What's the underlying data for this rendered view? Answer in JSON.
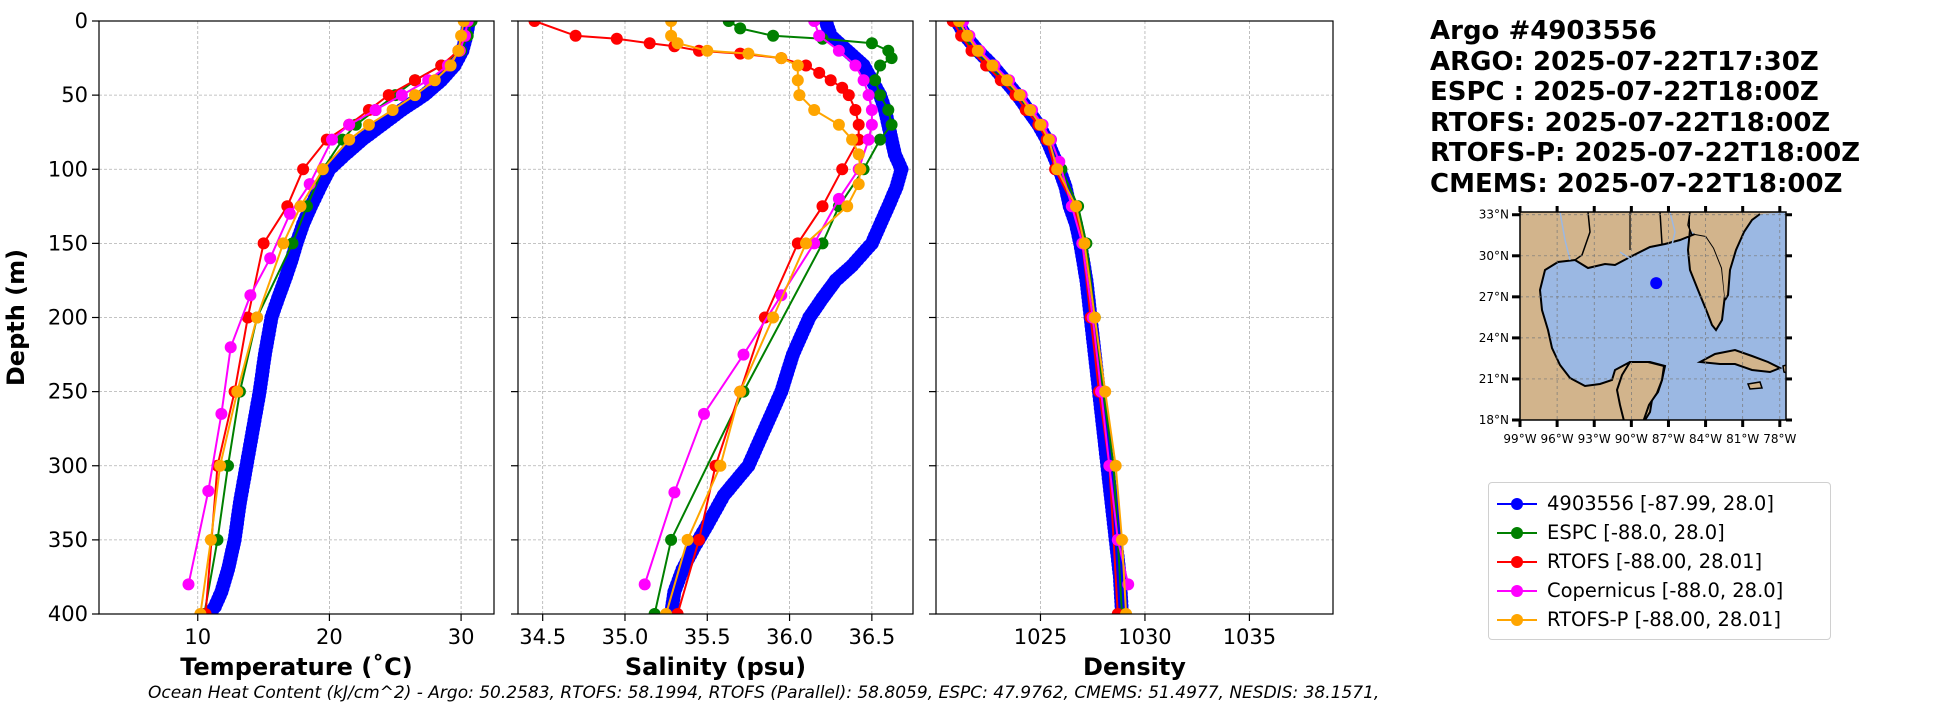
{
  "colors": {
    "argo": "#0000ff",
    "espc": "#008000",
    "rtofs": "#ff0000",
    "copernicus": "#ff00ff",
    "rtofs_p": "#ffa500",
    "land": "#d2b48c",
    "ocean": "#9bb8e3"
  },
  "title": {
    "line1": "Argo #4903556",
    "line2": "ARGO: 2025-07-22T17:30Z",
    "line3": "ESPC : 2025-07-22T18:00Z",
    "line4": "RTOFS: 2025-07-22T18:00Z",
    "line5": "RTOFS-P: 2025-07-22T18:00Z",
    "line6": "CMEMS: 2025-07-22T18:00Z"
  },
  "legend": {
    "items": [
      {
        "label": "4903556 [-87.99, 28.0]",
        "color": "#0000ff"
      },
      {
        "label": "ESPC [-88.0, 28.0]",
        "color": "#008000"
      },
      {
        "label": "RTOFS [-88.00, 28.01]",
        "color": "#ff0000"
      },
      {
        "label": "Copernicus [-88.0, 28.0]",
        "color": "#ff00ff"
      },
      {
        "label": "RTOFS-P [-88.00, 28.01]",
        "color": "#ffa500"
      }
    ]
  },
  "footer": "Ocean Heat Content (kJ/cm^2) - Argo: 50.2583,  RTOFS: 58.1994,  RTOFS (Parallel): 58.8059,  ESPC: 47.9762,  CMEMS: 51.4977,  NESDIS: 38.1571,",
  "map": {
    "lat_ticks": [
      "33°N",
      "30°N",
      "27°N",
      "24°N",
      "21°N",
      "18°N"
    ],
    "lon_ticks": [
      "99°W",
      "96°W",
      "93°W",
      "90°W",
      "87°W",
      "84°W",
      "81°W",
      "78°W"
    ],
    "float_position": {
      "lon": -87.99,
      "lat": 28.0
    },
    "lon_range": [
      -99,
      -77.5
    ],
    "lat_range": [
      18,
      33.2
    ]
  },
  "chart_data": [
    {
      "type": "line",
      "xlabel": "Temperature (˚C)",
      "ylabel": "Depth (m)",
      "xlim": [
        2.5,
        32.5
      ],
      "ylim": [
        400,
        0
      ],
      "xticks": [
        "10",
        "20",
        "30"
      ],
      "yticks": [
        "0",
        "50",
        "100",
        "150",
        "200",
        "250",
        "300",
        "350",
        "400"
      ],
      "grid": true,
      "series": [
        {
          "name": "4903556",
          "key": "argo",
          "dense": true,
          "x": [
            30.6,
            30.4,
            30.1,
            29.5,
            28.5,
            27.2,
            25.5,
            24.0,
            22.5,
            21.2,
            20.0,
            19.3,
            18.6,
            18.0,
            17.5,
            17.1,
            16.6,
            16.1,
            15.6,
            15.1,
            14.7,
            14.2,
            13.7,
            13.2,
            12.8,
            12.3,
            11.8,
            11.3,
            10.9
          ],
          "y": [
            0,
            10,
            20,
            30,
            40,
            50,
            60,
            70,
            80,
            90,
            100,
            112,
            125,
            137,
            150,
            162,
            175,
            187,
            200,
            225,
            250,
            275,
            300,
            325,
            350,
            370,
            385,
            395,
            400
          ]
        },
        {
          "name": "ESPC",
          "key": "espc",
          "x": [
            30.8,
            30.5,
            30.0,
            28.5,
            26.5,
            25.0,
            23.5,
            22.0,
            21.0,
            19.5,
            18.3,
            17.2,
            14.5,
            13.2,
            12.3,
            11.5,
            10.5
          ],
          "y": [
            0,
            10,
            20,
            30,
            40,
            50,
            60,
            70,
            80,
            100,
            125,
            150,
            200,
            250,
            300,
            350,
            400
          ]
        },
        {
          "name": "RTOFS",
          "key": "rtofs",
          "x": [
            30.5,
            30.3,
            29.8,
            28.5,
            26.5,
            24.5,
            23.0,
            21.5,
            19.8,
            18.0,
            16.8,
            15.0,
            13.8,
            12.8,
            11.5,
            10.6
          ],
          "y": [
            0,
            10,
            20,
            30,
            40,
            50,
            60,
            70,
            80,
            100,
            125,
            150,
            200,
            250,
            300,
            400
          ]
        },
        {
          "name": "Copernicus",
          "key": "copernicus",
          "x": [
            30.5,
            30.3,
            29.9,
            29.0,
            27.5,
            25.5,
            23.5,
            21.5,
            20.2,
            18.5,
            17.0,
            15.5,
            14.0,
            12.5,
            11.8,
            10.8,
            9.3
          ],
          "y": [
            0,
            10,
            20,
            30,
            40,
            50,
            60,
            70,
            80,
            110,
            130,
            160,
            185,
            220,
            265,
            317,
            380
          ]
        },
        {
          "name": "RTOFS-P",
          "key": "rtofs_p",
          "x": [
            30.2,
            30.0,
            29.8,
            29.2,
            28.0,
            26.5,
            24.8,
            23.0,
            21.5,
            19.5,
            17.8,
            16.5,
            14.5,
            13.0,
            11.7,
            11.0,
            10.2
          ],
          "y": [
            0,
            10,
            20,
            30,
            40,
            50,
            60,
            70,
            80,
            100,
            125,
            150,
            200,
            250,
            300,
            350,
            400
          ]
        }
      ]
    },
    {
      "type": "line",
      "xlabel": "Salinity (psu)",
      "ylabel": "",
      "xlim": [
        34.35,
        36.75
      ],
      "ylim": [
        400,
        0
      ],
      "xticks": [
        "34.5",
        "35.0",
        "35.5",
        "36.0",
        "36.5"
      ],
      "yticks": [],
      "grid": true,
      "series": [
        {
          "name": "4903556",
          "key": "argo",
          "dense": true,
          "x": [
            36.22,
            36.25,
            36.35,
            36.45,
            36.5,
            36.55,
            36.58,
            36.6,
            36.62,
            36.64,
            36.66,
            36.68,
            36.65,
            36.6,
            36.5,
            36.38,
            36.28,
            36.2,
            36.12,
            36.02,
            35.95,
            35.85,
            35.75,
            35.6,
            35.5,
            35.42,
            35.35,
            35.3,
            35.28
          ],
          "y": [
            0,
            10,
            20,
            30,
            40,
            50,
            60,
            70,
            80,
            90,
            95,
            100,
            112,
            125,
            150,
            165,
            175,
            187,
            200,
            225,
            250,
            275,
            300,
            320,
            340,
            355,
            370,
            385,
            400
          ]
        },
        {
          "name": "ESPC",
          "key": "espc",
          "x": [
            35.63,
            35.7,
            35.9,
            36.2,
            36.5,
            36.6,
            36.62,
            36.55,
            36.52,
            36.55,
            36.6,
            36.62,
            36.55,
            36.45,
            36.3,
            36.2,
            35.72,
            35.28,
            35.18
          ],
          "y": [
            0,
            5,
            10,
            12,
            15,
            20,
            25,
            30,
            40,
            50,
            60,
            70,
            80,
            100,
            125,
            150,
            250,
            350,
            400
          ]
        },
        {
          "name": "RTOFS",
          "key": "rtofs",
          "x": [
            34.45,
            34.7,
            34.95,
            35.15,
            35.3,
            35.45,
            35.7,
            35.95,
            36.1,
            36.18,
            36.25,
            36.32,
            36.36,
            36.4,
            36.42,
            36.42,
            36.32,
            36.2,
            36.05,
            35.85,
            35.7,
            35.55,
            35.45,
            35.32
          ],
          "y": [
            0,
            10,
            12,
            15,
            17,
            20,
            22,
            25,
            30,
            35,
            40,
            45,
            50,
            60,
            70,
            80,
            100,
            125,
            150,
            200,
            250,
            300,
            350,
            400
          ]
        },
        {
          "name": "Copernicus",
          "key": "copernicus",
          "x": [
            36.15,
            36.18,
            36.3,
            36.4,
            36.45,
            36.48,
            36.5,
            36.5,
            36.48,
            36.42,
            36.3,
            36.15,
            35.95,
            35.72,
            35.48,
            35.3,
            35.12
          ],
          "y": [
            0,
            10,
            20,
            30,
            40,
            50,
            60,
            70,
            80,
            100,
            120,
            150,
            185,
            225,
            265,
            318,
            380
          ]
        },
        {
          "name": "RTOFS-P",
          "key": "rtofs_p",
          "x": [
            35.28,
            35.28,
            35.32,
            35.5,
            35.75,
            35.95,
            36.05,
            36.05,
            36.06,
            36.15,
            36.3,
            36.38,
            36.42,
            36.43,
            36.42,
            36.35,
            36.1,
            35.9,
            35.7,
            35.58,
            35.38,
            35.25
          ],
          "y": [
            0,
            10,
            15,
            20,
            22,
            25,
            30,
            40,
            50,
            60,
            70,
            80,
            90,
            100,
            110,
            125,
            150,
            200,
            250,
            300,
            350,
            400
          ]
        }
      ]
    },
    {
      "type": "line",
      "xlabel": "Density",
      "ylabel": "",
      "xlim": [
        1020.0,
        1039.0
      ],
      "ylim": [
        400,
        0
      ],
      "xticks": [
        "1025",
        "1030",
        "1035"
      ],
      "yticks": [],
      "grid": true,
      "series": [
        {
          "name": "4903556",
          "key": "argo",
          "dense": true,
          "x": [
            1021.0,
            1021.4,
            1022.0,
            1022.7,
            1023.3,
            1023.9,
            1024.4,
            1024.9,
            1025.3,
            1025.6,
            1025.9,
            1026.2,
            1026.4,
            1026.7,
            1026.9,
            1027.2,
            1027.4,
            1027.6,
            1027.8,
            1028.0,
            1028.2,
            1028.4,
            1028.6,
            1028.8,
            1028.9
          ],
          "y": [
            0,
            10,
            20,
            30,
            40,
            50,
            60,
            70,
            80,
            90,
            100,
            112,
            125,
            137,
            150,
            175,
            200,
            225,
            250,
            275,
            300,
            325,
            350,
            375,
            400
          ]
        },
        {
          "name": "ESPC",
          "key": "espc",
          "x": [
            1021.0,
            1021.3,
            1021.8,
            1022.5,
            1023.2,
            1023.9,
            1024.5,
            1025.0,
            1025.5,
            1026.0,
            1026.8,
            1027.2,
            1027.6,
            1028.0,
            1028.5,
            1028.9
          ],
          "y": [
            0,
            10,
            20,
            30,
            40,
            50,
            60,
            70,
            80,
            100,
            125,
            150,
            200,
            250,
            300,
            400
          ]
        },
        {
          "name": "RTOFS",
          "key": "rtofs",
          "x": [
            1020.8,
            1021.2,
            1021.7,
            1022.4,
            1023.1,
            1023.8,
            1024.3,
            1024.9,
            1025.3,
            1025.7,
            1026.6,
            1027.0,
            1027.4,
            1027.8,
            1028.3,
            1028.7
          ],
          "y": [
            0,
            10,
            20,
            30,
            40,
            50,
            60,
            70,
            80,
            100,
            125,
            150,
            200,
            250,
            300,
            400
          ]
        },
        {
          "name": "Copernicus",
          "key": "copernicus",
          "x": [
            1021.3,
            1021.6,
            1022.1,
            1022.8,
            1023.5,
            1024.1,
            1024.6,
            1025.1,
            1025.5,
            1025.9,
            1026.5,
            1027.0,
            1027.5,
            1027.9,
            1028.3,
            1028.7,
            1029.2
          ],
          "y": [
            0,
            10,
            20,
            30,
            40,
            50,
            60,
            70,
            80,
            95,
            125,
            150,
            200,
            250,
            300,
            350,
            380
          ]
        },
        {
          "name": "RTOFS-P",
          "key": "rtofs_p",
          "x": [
            1021.1,
            1021.5,
            1022.0,
            1022.7,
            1023.4,
            1024.0,
            1024.5,
            1025.0,
            1025.4,
            1025.8,
            1026.7,
            1027.1,
            1027.6,
            1028.1,
            1028.6,
            1028.9,
            1029.1
          ],
          "y": [
            0,
            10,
            20,
            30,
            40,
            50,
            60,
            70,
            80,
            100,
            125,
            150,
            200,
            250,
            300,
            350,
            400
          ]
        }
      ]
    }
  ]
}
